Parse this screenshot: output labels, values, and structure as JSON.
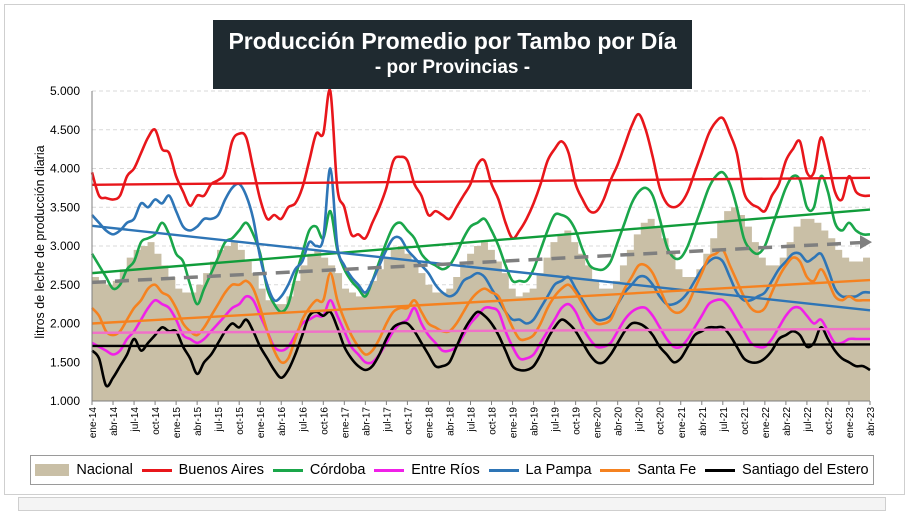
{
  "chart_data": {
    "type": "line",
    "title": "Producción Promedio por Tambo por Día",
    "subtitle": "- por Provincias -",
    "xlabel": "",
    "ylabel": "litros de leche de producción diaria",
    "ylim": [
      1000,
      5000
    ],
    "yticks": [
      1000,
      1500,
      2000,
      2500,
      3000,
      3500,
      4000,
      4500,
      5000
    ],
    "ytick_labels": [
      "1.000",
      "1.500",
      "2.000",
      "2.500",
      "3.000",
      "3.500",
      "4.000",
      "4.500",
      "5.000"
    ],
    "xtick_labels": [
      "ene-14",
      "abr-14",
      "jul-14",
      "oct-14",
      "ene-15",
      "abr-15",
      "jul-15",
      "oct-15",
      "ene-16",
      "abr-16",
      "jul-16",
      "oct-16",
      "ene-17",
      "abr-17",
      "jul-17",
      "oct-17",
      "ene-18",
      "abr-18",
      "jul-18",
      "oct-18",
      "ene-19",
      "abr-19",
      "jul-19",
      "oct-19",
      "ene-20",
      "abr-20",
      "jul-20",
      "oct-20",
      "ene-21",
      "abr-21",
      "jul-21",
      "oct-21",
      "ene-22",
      "abr-22",
      "jul-22",
      "oct-22",
      "ene-23",
      "abr-23"
    ],
    "n_months": 112,
    "grid": true,
    "legend_position": "bottom",
    "series": [
      {
        "name": "Nacional",
        "kind": "area",
        "color": "#c9bfa6",
        "values": [
          2600,
          2550,
          2500,
          2550,
          2700,
          2850,
          2950,
          3000,
          3050,
          2900,
          2750,
          2600,
          2450,
          2400,
          2400,
          2500,
          2650,
          2800,
          2950,
          3000,
          3050,
          2950,
          2800,
          2650,
          2450,
          2300,
          2250,
          2250,
          2350,
          2550,
          2750,
          2900,
          2950,
          2850,
          2750,
          2650,
          2450,
          2400,
          2350,
          2400,
          2550,
          2700,
          2850,
          2950,
          3000,
          2900,
          2800,
          2650,
          2500,
          2400,
          2400,
          2450,
          2600,
          2750,
          2900,
          3000,
          3050,
          2950,
          2800,
          2650,
          2450,
          2350,
          2400,
          2450,
          2650,
          2850,
          3050,
          3150,
          3200,
          3050,
          2900,
          2750,
          2550,
          2450,
          2450,
          2550,
          2750,
          2950,
          3150,
          3300,
          3350,
          3250,
          3100,
          2900,
          2700,
          2600,
          2600,
          2700,
          2900,
          3100,
          3300,
          3450,
          3500,
          3400,
          3250,
          3050,
          2850,
          2750,
          2750,
          2850,
          3050,
          3250,
          3350,
          3350,
          3300,
          3200,
          3100,
          2950,
          2850,
          2800,
          2800,
          2850
        ]
      },
      {
        "name": "Buenos Aires",
        "kind": "line",
        "color": "#e8161b",
        "values": [
          3950,
          3650,
          3620,
          3600,
          3650,
          3900,
          4000,
          4200,
          4400,
          4500,
          4250,
          4200,
          3900,
          3700,
          3520,
          3650,
          3650,
          3800,
          3850,
          3950,
          4350,
          4450,
          4400,
          4000,
          3600,
          3350,
          3400,
          3350,
          3500,
          3550,
          3750,
          4100,
          4450,
          4450,
          5000,
          3750,
          3500,
          3150,
          3150,
          3100,
          3300,
          3500,
          3750,
          4100,
          4150,
          4100,
          3800,
          3650,
          3400,
          3450,
          3400,
          3350,
          3500,
          3650,
          3800,
          4050,
          4100,
          3800,
          3600,
          3300,
          3100,
          3200,
          3350,
          3550,
          3800,
          4100,
          4250,
          4350,
          4200,
          3800,
          3600,
          3450,
          3450,
          3600,
          3850,
          4050,
          4300,
          4550,
          4700,
          4500,
          4150,
          3750,
          3550,
          3500,
          3550,
          3700,
          3950,
          4200,
          4450,
          4600,
          4650,
          4450,
          4200,
          3700,
          3550,
          3500,
          3450,
          3650,
          3800,
          4100,
          4250,
          4350,
          3950,
          3950,
          4400,
          4100,
          3700,
          3600,
          3900,
          3700,
          3650,
          3650
        ]
      },
      {
        "name": "Córdoba",
        "kind": "line",
        "color": "#1aa64a",
        "values": [
          2900,
          2750,
          2600,
          2450,
          2500,
          2700,
          2800,
          3050,
          3100,
          3150,
          3300,
          3150,
          2900,
          2800,
          2500,
          2250,
          2450,
          2650,
          2850,
          3050,
          3100,
          3200,
          3300,
          3150,
          2900,
          2450,
          2250,
          2150,
          2250,
          2600,
          2900,
          3200,
          3250,
          3100,
          3450,
          2950,
          2700,
          2550,
          2450,
          2350,
          2550,
          2800,
          3050,
          3250,
          3300,
          3200,
          3100,
          2900,
          2800,
          2750,
          2700,
          2750,
          2900,
          3100,
          3250,
          3300,
          3350,
          3200,
          3000,
          2750,
          2550,
          2550,
          2550,
          2700,
          2950,
          3200,
          3400,
          3400,
          3350,
          3200,
          2950,
          2750,
          2700,
          2700,
          2800,
          3050,
          3300,
          3550,
          3700,
          3750,
          3650,
          3350,
          3000,
          2850,
          2850,
          3000,
          3250,
          3500,
          3750,
          3900,
          3950,
          3800,
          3500,
          3100,
          2950,
          2900,
          3000,
          3250,
          3500,
          3750,
          3900,
          3850,
          3500,
          3500,
          3900,
          3700,
          3300,
          3200,
          3300,
          3200,
          3150,
          3150
        ]
      },
      {
        "name": "Entre Ríos",
        "kind": "line",
        "color": "#f020e8",
        "values": [
          1750,
          1700,
          1650,
          1600,
          1650,
          1800,
          1900,
          2050,
          2200,
          2300,
          2250,
          2200,
          2050,
          1850,
          1800,
          1750,
          1800,
          1900,
          2000,
          2100,
          2200,
          2250,
          2350,
          2300,
          2100,
          1900,
          1700,
          1650,
          1700,
          1850,
          2000,
          2050,
          2100,
          2100,
          2300,
          2100,
          1900,
          1700,
          1600,
          1500,
          1500,
          1600,
          1750,
          1900,
          2000,
          2050,
          2200,
          2000,
          1850,
          1750,
          1650,
          1650,
          1700,
          1850,
          2000,
          2100,
          2200,
          2200,
          2150,
          1900,
          1700,
          1550,
          1550,
          1600,
          1750,
          1900,
          2050,
          2200,
          2250,
          2150,
          1950,
          1800,
          1700,
          1700,
          1750,
          1900,
          2050,
          2150,
          2200,
          2200,
          2100,
          1950,
          1800,
          1700,
          1700,
          1800,
          1950,
          2100,
          2250,
          2300,
          2300,
          2200,
          2050,
          1900,
          1750,
          1700,
          1700,
          1800,
          1950,
          2100,
          2200,
          2200,
          2100,
          2000,
          2050,
          1900,
          1750,
          1750,
          1800,
          1800,
          1800,
          1800
        ]
      },
      {
        "name": "La Pampa",
        "kind": "line",
        "color": "#2e75b6",
        "values": [
          3400,
          3300,
          3200,
          3150,
          3200,
          3300,
          3350,
          3550,
          3500,
          3600,
          3550,
          3650,
          3450,
          3250,
          3200,
          3250,
          3350,
          3350,
          3400,
          3600,
          3750,
          3800,
          3650,
          3350,
          2850,
          2500,
          2300,
          2350,
          2500,
          2700,
          2800,
          3050,
          3000,
          3100,
          4000,
          3000,
          2750,
          2600,
          2500,
          2400,
          2550,
          2750,
          2950,
          3100,
          3100,
          2950,
          2850,
          2750,
          2650,
          2500,
          2400,
          2350,
          2400,
          2550,
          2600,
          2650,
          2600,
          2450,
          2300,
          2150,
          2050,
          2050,
          2000,
          2050,
          2200,
          2350,
          2500,
          2550,
          2600,
          2450,
          2300,
          2150,
          2050,
          2050,
          2100,
          2250,
          2400,
          2500,
          2600,
          2600,
          2500,
          2350,
          2250,
          2250,
          2300,
          2400,
          2550,
          2700,
          2800,
          2850,
          2800,
          2600,
          2400,
          2300,
          2300,
          2350,
          2400,
          2550,
          2700,
          2800,
          2900,
          2900,
          2800,
          2850,
          2900,
          2700,
          2450,
          2350,
          2350,
          2350,
          2400,
          2400
        ]
      },
      {
        "name": "Santa Fe",
        "kind": "line",
        "color": "#f58220",
        "values": [
          2200,
          2100,
          1900,
          1850,
          1900,
          2050,
          2200,
          2300,
          2450,
          2500,
          2400,
          2350,
          2200,
          2000,
          1900,
          1850,
          1950,
          2100,
          2250,
          2400,
          2500,
          2500,
          2550,
          2450,
          2200,
          1900,
          1650,
          1500,
          1550,
          1800,
          2050,
          2200,
          2300,
          2300,
          2650,
          2300,
          2050,
          1850,
          1700,
          1600,
          1650,
          1800,
          2000,
          2150,
          2200,
          2200,
          2300,
          2150,
          2000,
          1950,
          1900,
          1900,
          2000,
          2150,
          2300,
          2400,
          2450,
          2400,
          2350,
          2150,
          1950,
          1800,
          1800,
          1850,
          2000,
          2200,
          2350,
          2450,
          2500,
          2400,
          2250,
          2100,
          2000,
          2000,
          2050,
          2250,
          2450,
          2600,
          2750,
          2750,
          2650,
          2450,
          2250,
          2150,
          2150,
          2250,
          2450,
          2650,
          2850,
          2900,
          2950,
          2750,
          2550,
          2350,
          2200,
          2150,
          2200,
          2400,
          2600,
          2750,
          2850,
          2800,
          2600,
          2550,
          2700,
          2550,
          2350,
          2300,
          2350,
          2300,
          2300,
          2300
        ]
      },
      {
        "name": "Santiago del Estero",
        "kind": "line",
        "color": "#000000",
        "values": [
          1650,
          1550,
          1200,
          1300,
          1450,
          1600,
          1800,
          1650,
          1750,
          1850,
          1950,
          1900,
          1900,
          1700,
          1550,
          1350,
          1500,
          1600,
          1750,
          1900,
          2000,
          1950,
          2050,
          1900,
          1700,
          1550,
          1400,
          1300,
          1400,
          1600,
          1850,
          2100,
          2150,
          2100,
          2150,
          1950,
          1700,
          1550,
          1450,
          1400,
          1450,
          1600,
          1800,
          1950,
          2000,
          2000,
          1900,
          1750,
          1600,
          1450,
          1450,
          1500,
          1700,
          1900,
          2050,
          2150,
          2100,
          2000,
          1850,
          1650,
          1450,
          1400,
          1400,
          1450,
          1600,
          1800,
          1950,
          2050,
          2000,
          1900,
          1750,
          1600,
          1500,
          1500,
          1600,
          1750,
          1900,
          2000,
          2000,
          1950,
          1850,
          1700,
          1600,
          1500,
          1550,
          1700,
          1850,
          1900,
          1950,
          1950,
          1950,
          1850,
          1700,
          1550,
          1500,
          1500,
          1550,
          1650,
          1800,
          1850,
          1900,
          1850,
          1700,
          1750,
          1950,
          1800,
          1650,
          1550,
          1500,
          1450,
          1450,
          1400
        ]
      }
    ],
    "trendlines": [
      {
        "series": "Buenos Aires",
        "style": "solid",
        "color": "#e8161b",
        "start": 3790,
        "end": 3880
      },
      {
        "series": "Córdoba",
        "style": "solid",
        "color": "#109c3a",
        "start": 2650,
        "end": 3470
      },
      {
        "series": "Entre Ríos",
        "style": "solid",
        "color": "#f070c8",
        "start": 1880,
        "end": 1930
      },
      {
        "series": "La Pampa",
        "style": "solid",
        "color": "#2e75b6",
        "start": 3260,
        "end": 2170
      },
      {
        "series": "Santa Fe",
        "style": "solid",
        "color": "#f58220",
        "start": 2000,
        "end": 2560
      },
      {
        "series": "Santiago del Estero",
        "style": "solid",
        "color": "#000000",
        "start": 1710,
        "end": 1730
      },
      {
        "series": "Nacional",
        "style": "dashed",
        "color": "#7f7f7f",
        "start": 2530,
        "end": 3050
      }
    ]
  }
}
